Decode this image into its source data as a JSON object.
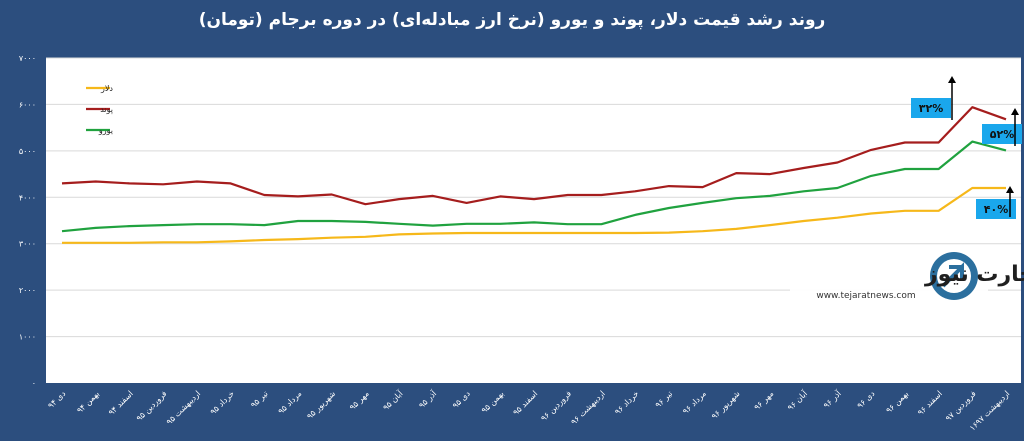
{
  "chart_data": {
    "type": "line",
    "title": "روند رشد قیمت دلار، پوند و یورو (نرخ ارز مبادله‌ای) در دوره برجام (تومان)",
    "categories": [
      "دی ۹۴",
      "بهمن ۹۴",
      "اسفند ۹۴",
      "فروردین ۹۵",
      "اردیبهشت ۹۵",
      "خرداد ۹۵",
      "تیر ۹۵",
      "مرداد ۹۵",
      "شهریور ۹۵",
      "مهر ۹۵",
      "آبان ۹۵",
      "آذر ۹۵",
      "دی ۹۵",
      "بهمن ۹۵",
      "اسفند ۹۵",
      "فروردین ۹۶",
      "اردیبهشت ۹۶",
      "خرداد ۹۶",
      "تیر ۹۶",
      "مرداد ۹۶",
      "شهریور ۹۶",
      "مهر ۹۶",
      "آبان ۹۶",
      "آذر ۹۶",
      "دی ۹۶",
      "بهمن ۹۶",
      "اسفند ۹۶",
      "فروردین ۹۷",
      "۱۶اردیبهشت ۹۷"
    ],
    "series": [
      {
        "name": "دلار",
        "color": "#f6b81a",
        "values": [
          3020,
          3020,
          3020,
          3030,
          3030,
          3050,
          3080,
          3100,
          3130,
          3150,
          3200,
          3220,
          3230,
          3230,
          3230,
          3230,
          3230,
          3230,
          3240,
          3270,
          3320,
          3400,
          3490,
          3560,
          3650,
          3710,
          3710,
          4200,
          4200
        ]
      },
      {
        "name": "پوند",
        "color": "#a51d1d",
        "values": [
          4300,
          4340,
          4300,
          4280,
          4340,
          4300,
          4050,
          4020,
          4060,
          3850,
          3960,
          4030,
          3880,
          4020,
          3960,
          4050,
          4050,
          4130,
          4240,
          4220,
          4520,
          4500,
          4630,
          4750,
          5020,
          5180,
          5180,
          5940,
          5680
        ]
      },
      {
        "name": "یورو",
        "color": "#20a23f",
        "values": [
          3270,
          3340,
          3380,
          3400,
          3420,
          3420,
          3400,
          3490,
          3490,
          3470,
          3430,
          3390,
          3430,
          3430,
          3460,
          3420,
          3420,
          3620,
          3770,
          3880,
          3980,
          4030,
          4130,
          4200,
          4460,
          4610,
          4610,
          5200,
          5010
        ]
      }
    ],
    "ylim": [
      0,
      7000
    ],
    "yticks": [
      "۰",
      "۱۰۰۰",
      "۲۰۰۰",
      "۳۰۰۰",
      "۴۰۰۰",
      "۵۰۰۰",
      "۶۰۰۰",
      "۷۰۰۰"
    ],
    "grid": true,
    "legend": "top-left",
    "annotations": [
      {
        "series": "پوند",
        "text": "۳۲%",
        "change_percent": 32
      },
      {
        "series": "یورو",
        "text": "۵۲%",
        "change_percent": 52
      },
      {
        "series": "دلار",
        "text": "۴۰%",
        "change_percent": 40
      }
    ]
  },
  "watermark": {
    "logo_text": "تجارت نیوز",
    "url": "www.tejaratnews.com"
  },
  "colors": {
    "background": "#2c4e7e",
    "plot_background": "#ffffff",
    "gridline": "#d9d9d9",
    "annotation_box": "#1aa7ec"
  }
}
